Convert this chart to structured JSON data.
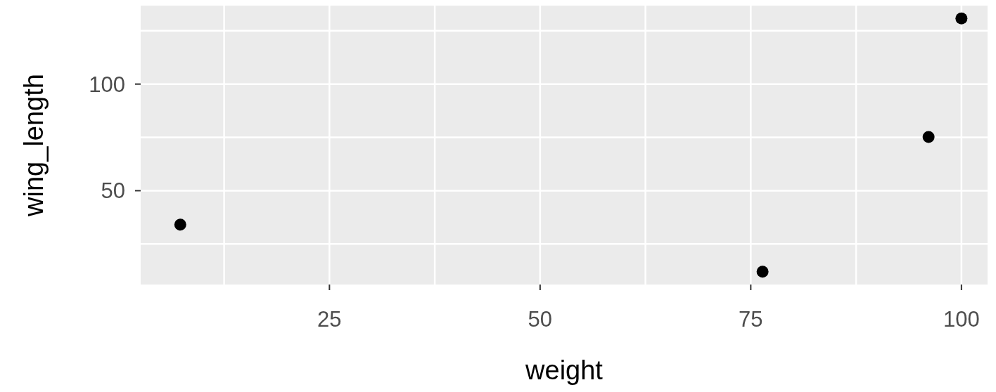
{
  "chart_data": {
    "type": "scatter",
    "xlabel": "weight",
    "ylabel": "wing_length",
    "x": [
      7.3,
      76.4,
      96.1,
      100
    ],
    "values": [
      34.1,
      12,
      75.2,
      130.8
    ],
    "color": "#000000",
    "xlim": [
      2.6,
      103.1
    ],
    "xticks": [
      {
        "value": 12.5,
        "label": null
      },
      25,
      {
        "value": 37.5,
        "label": null
      },
      50,
      {
        "value": 62.5,
        "label": null
      },
      75,
      {
        "value": 87.5,
        "label": null
      },
      100
    ],
    "ylim": [
      6,
      136.8
    ],
    "yticks": [
      {
        "value": 25,
        "label": null
      },
      50,
      {
        "value": 75,
        "label": null
      },
      100,
      {
        "value": 125,
        "label": null
      }
    ],
    "grid": true,
    "marker": "circle"
  }
}
